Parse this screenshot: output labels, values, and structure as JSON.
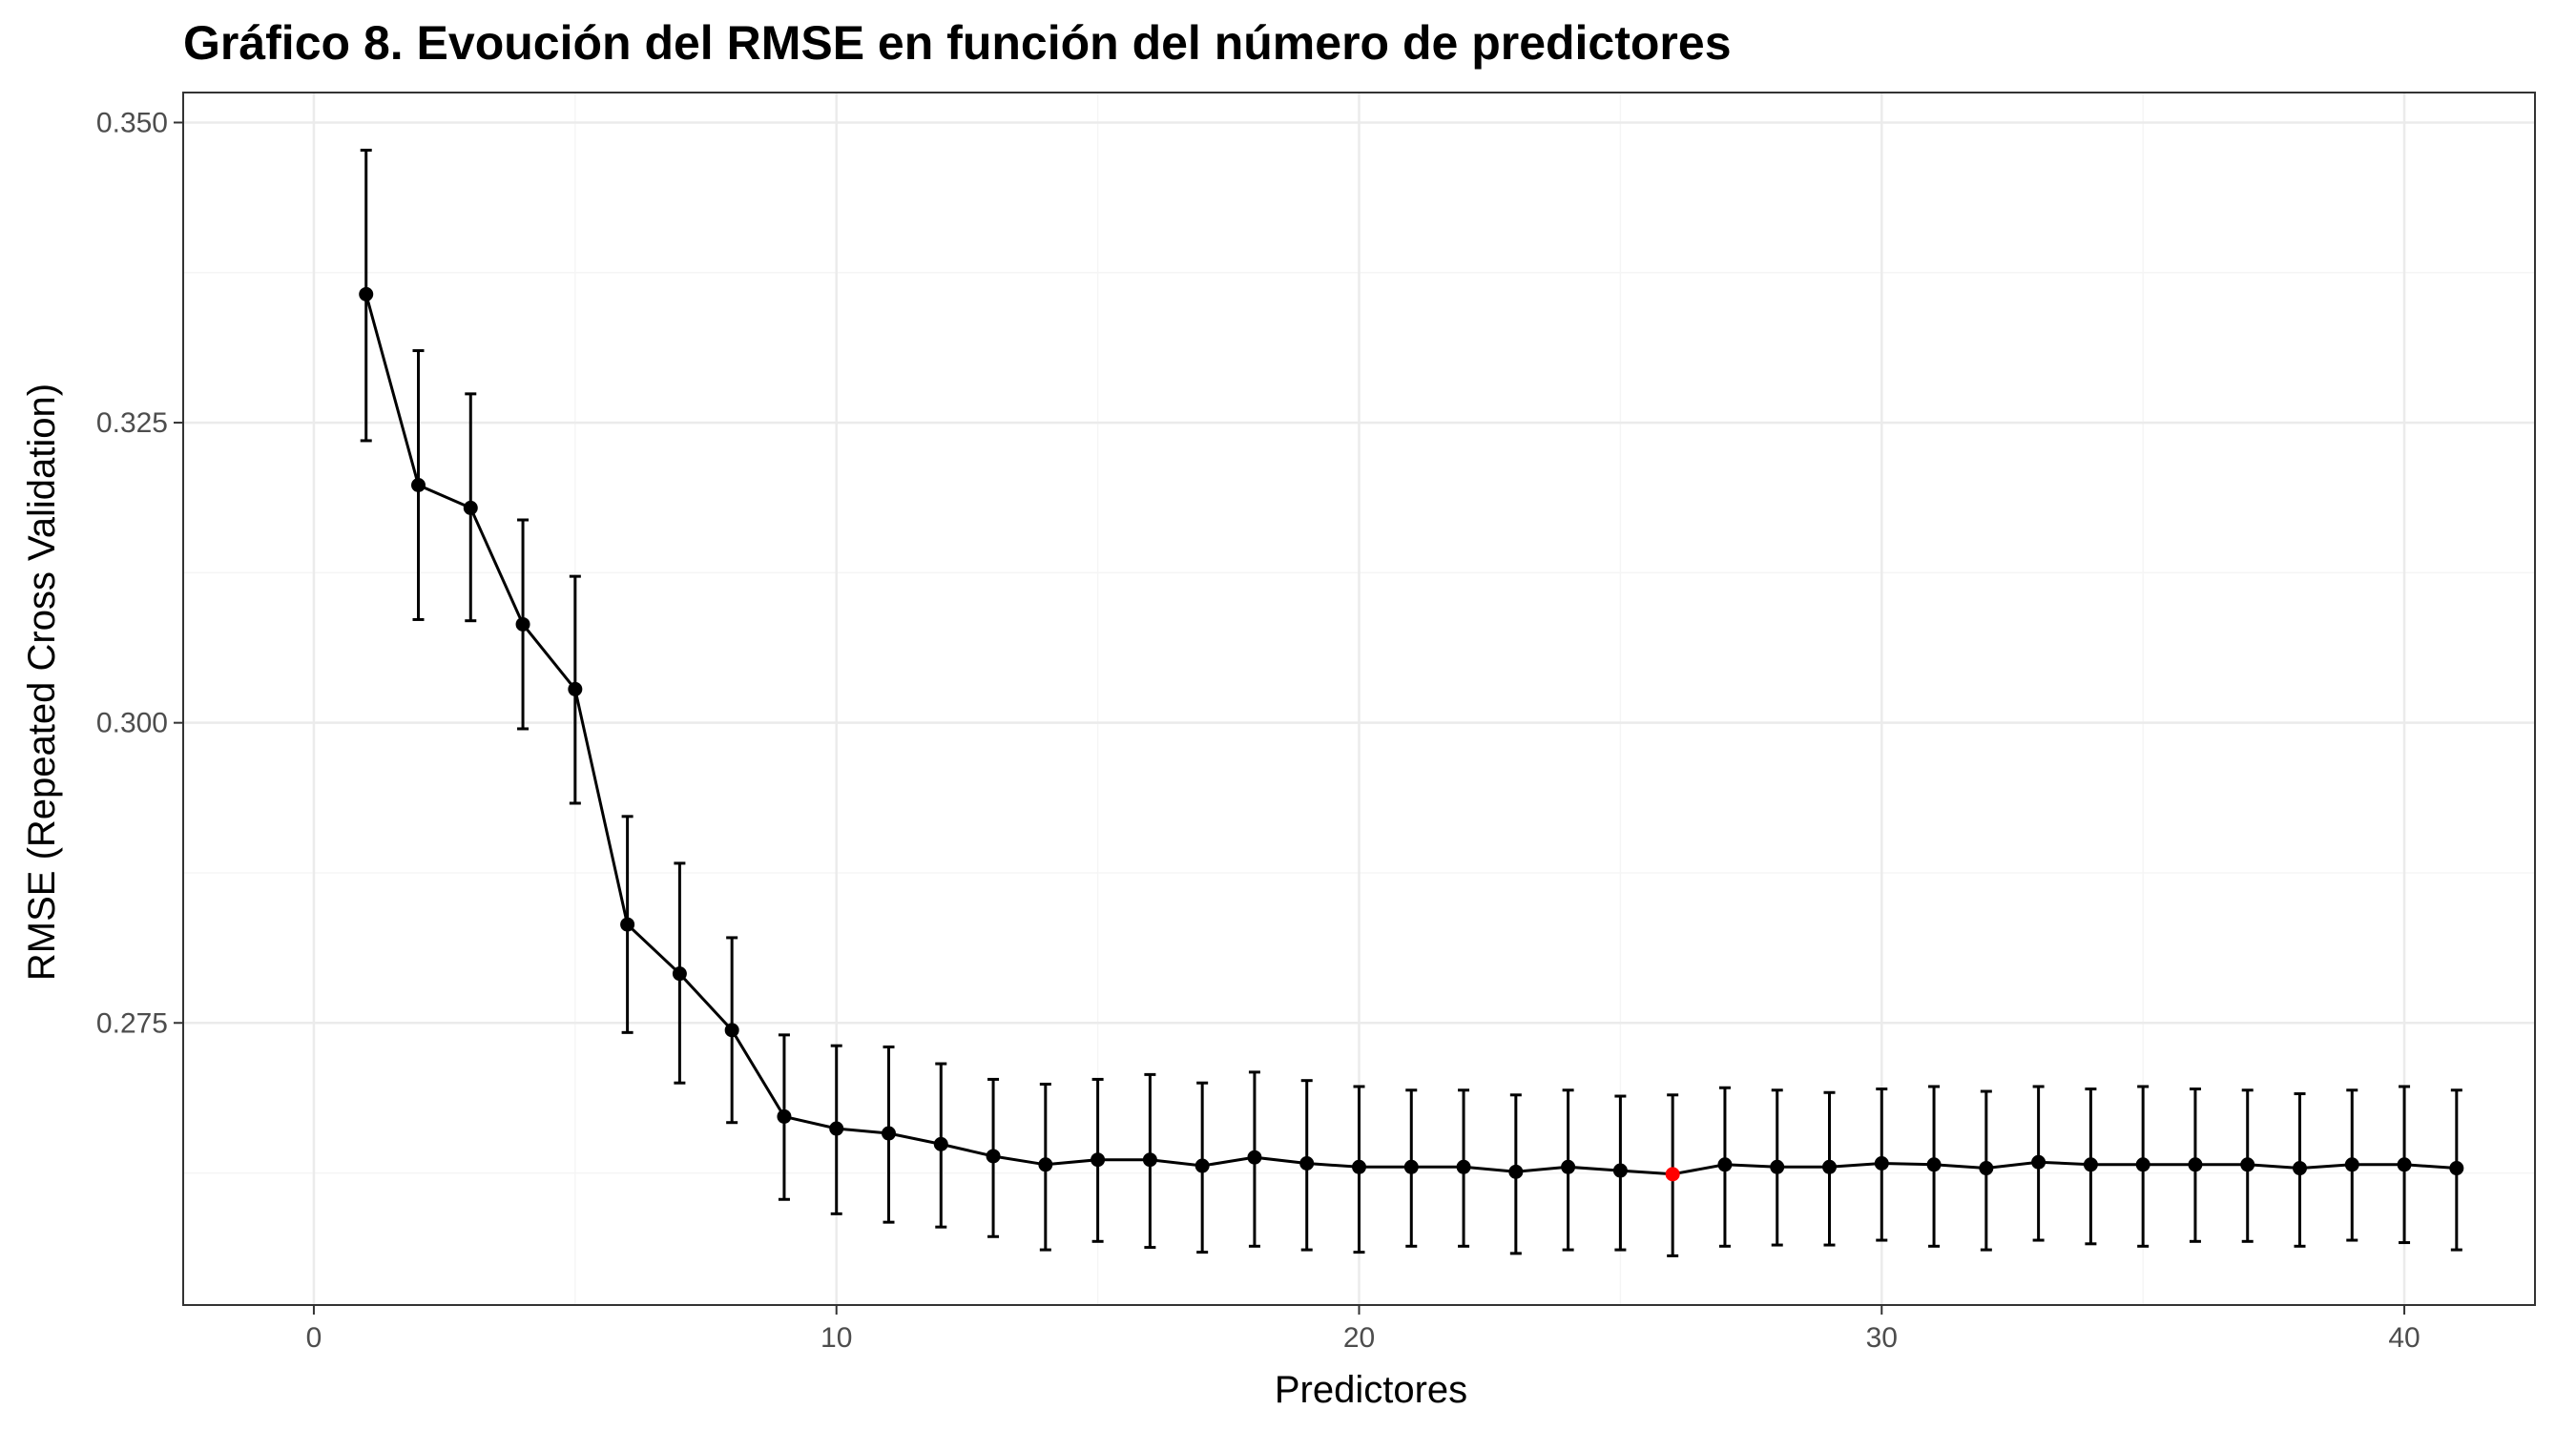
{
  "colors": {
    "line": "#000000",
    "point": "#000000",
    "highlight": "#ff0000",
    "grid_major": "#ebebeb",
    "grid_minor": "#f5f5f5",
    "panel_border": "#333333",
    "tick_text": "#4d4d4d"
  },
  "chart_data": {
    "type": "line",
    "title": "Gráfico 8. Evoución del RMSE en función del número de predictores",
    "xlabel": "Predictores",
    "ylabel": "RMSE (Repeated Cross Validation)",
    "xlim": [
      -2.5,
      42.5
    ],
    "ylim": [
      0.2515,
      0.3525
    ],
    "x_ticks": [
      0,
      10,
      20,
      30,
      40
    ],
    "x_tick_labels": [
      "0",
      "10",
      "20",
      "30",
      "40"
    ],
    "y_ticks": [
      0.275,
      0.3,
      0.325,
      0.35
    ],
    "y_tick_labels": [
      "0.275",
      "0.300",
      "0.325",
      "0.350"
    ],
    "grid": true,
    "highlight_point": 26,
    "series": [
      {
        "x": [
          1,
          2,
          3,
          4,
          5,
          6,
          7,
          8,
          9,
          10,
          11,
          12,
          13,
          14,
          15,
          16,
          17,
          18,
          19,
          20,
          21,
          22,
          23,
          24,
          25,
          26,
          27,
          28,
          29,
          30,
          31,
          32,
          33,
          34,
          35,
          36,
          37,
          38,
          39,
          40,
          41
        ],
        "y": [
          0.3357,
          0.3198,
          0.3179,
          0.3082,
          0.3028,
          0.2832,
          0.2791,
          0.2744,
          0.2672,
          0.2662,
          0.2658,
          0.2649,
          0.2639,
          0.2632,
          0.2636,
          0.2636,
          0.2631,
          0.2638,
          0.2633,
          0.263,
          0.263,
          0.263,
          0.2626,
          0.263,
          0.2627,
          0.2624,
          0.2632,
          0.263,
          0.263,
          0.2633,
          0.2632,
          0.2629,
          0.2634,
          0.2632,
          0.2632,
          0.2632,
          0.2632,
          0.2629,
          0.2632,
          0.2632,
          0.2629
        ],
        "err_low": [
          0.3235,
          0.3086,
          0.3085,
          0.2995,
          0.2933,
          0.2742,
          0.27,
          0.2667,
          0.2603,
          0.2591,
          0.2584,
          0.258,
          0.2572,
          0.2561,
          0.2568,
          0.2563,
          0.2559,
          0.2564,
          0.2561,
          0.2559,
          0.2564,
          0.2564,
          0.2558,
          0.2561,
          0.2561,
          0.2556,
          0.2564,
          0.2565,
          0.2565,
          0.2569,
          0.2564,
          0.2561,
          0.2569,
          0.2566,
          0.2564,
          0.2568,
          0.2568,
          0.2564,
          0.2569,
          0.2567,
          0.2561
        ],
        "err_high": [
          0.3477,
          0.331,
          0.3274,
          0.3169,
          0.3122,
          0.2922,
          0.2883,
          0.2821,
          0.274,
          0.2731,
          0.273,
          0.2716,
          0.2703,
          0.2699,
          0.2703,
          0.2707,
          0.27,
          0.2709,
          0.2702,
          0.2697,
          0.2694,
          0.2694,
          0.269,
          0.2694,
          0.2689,
          0.269,
          0.2696,
          0.2694,
          0.2692,
          0.2695,
          0.2697,
          0.2693,
          0.2697,
          0.2695,
          0.2697,
          0.2695,
          0.2694,
          0.2691,
          0.2694,
          0.2697,
          0.2694
        ]
      }
    ]
  }
}
